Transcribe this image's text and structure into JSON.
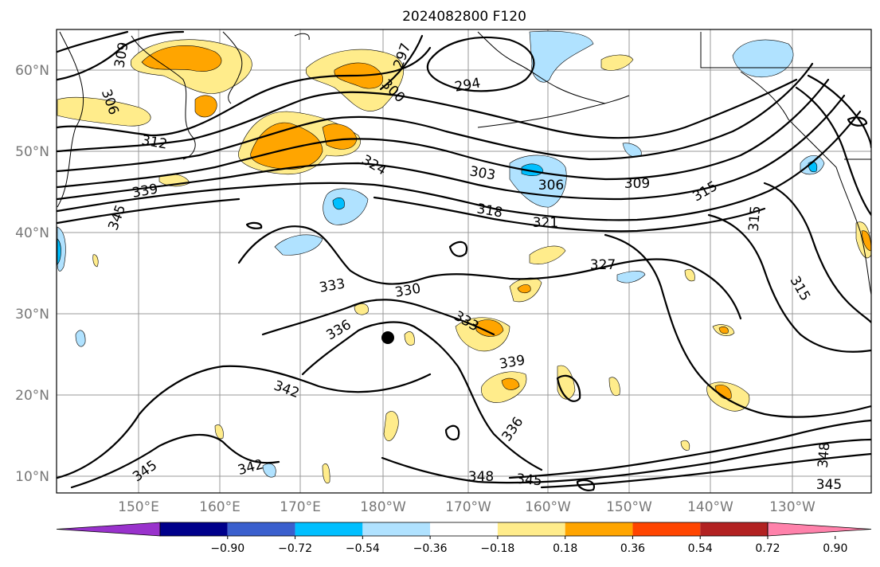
{
  "title": "2024082800 F120",
  "lat_labels": [
    "60°N",
    "50°N",
    "40°N",
    "30°N",
    "20°N",
    "10°N"
  ],
  "lon_labels": [
    "150°E",
    "160°E",
    "170°E",
    "180°W",
    "170°W",
    "160°W",
    "150°W",
    "140°W",
    "130°W"
  ],
  "colorbar": {
    "ticks": [
      "−0.90",
      "−0.72",
      "−0.54",
      "−0.36",
      "−0.18",
      "0.18",
      "0.36",
      "0.54",
      "0.72",
      "0.90"
    ],
    "colors": [
      "#9932cc",
      "#00008b",
      "#3a5fcd",
      "#00bfff",
      "#b0e2ff",
      "#ffffff",
      "#ffec8b",
      "#ffa500",
      "#ff4500",
      "#b22222",
      "#ff82ab"
    ]
  },
  "contour_labels": [
    "309",
    "306",
    "312",
    "297",
    "300",
    "294",
    "324",
    "303",
    "306",
    "309",
    "315",
    "339",
    "345",
    "318",
    "321",
    "315",
    "327",
    "333",
    "330",
    "315",
    "333",
    "336",
    "339",
    "342",
    "336",
    "342",
    "345",
    "348",
    "345",
    "348",
    "345"
  ],
  "marker": "station-dot"
}
